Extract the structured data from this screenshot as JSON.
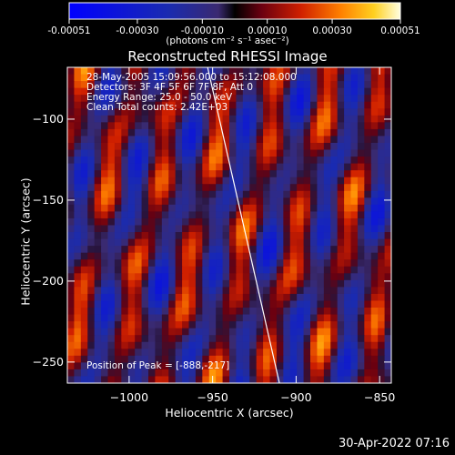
{
  "colorbar": {
    "ticks": [
      {
        "value": -0.00051,
        "label": "-0.00051"
      },
      {
        "value": -0.0003,
        "label": "-0.00030"
      },
      {
        "value": -0.0001,
        "label": "-0.00010"
      },
      {
        "value": 0.0001,
        "label": "0.00010"
      },
      {
        "value": 0.0003,
        "label": "0.00030"
      },
      {
        "value": 0.00051,
        "label": "0.00051"
      }
    ],
    "range": [
      -0.00051,
      0.00051
    ],
    "units_label": "(photons cm⁻² s⁻¹ asec⁻²)"
  },
  "chart_data": {
    "type": "heatmap",
    "title": "Reconstructed RHESSI Image",
    "xlabel": "Heliocentric X (arcsec)",
    "ylabel": "Heliocentric Y (arcsec)",
    "xlim": [
      -1037,
      -843
    ],
    "ylim": [
      -263,
      -68
    ],
    "xticks": [
      {
        "value": -1000,
        "label": "−1000"
      },
      {
        "value": -950,
        "label": "−950"
      },
      {
        "value": -900,
        "label": "−900"
      },
      {
        "value": -850,
        "label": "−850"
      }
    ],
    "yticks": [
      {
        "value": -100,
        "label": "−100"
      },
      {
        "value": -150,
        "label": "−150"
      },
      {
        "value": -200,
        "label": "−200"
      },
      {
        "value": -250,
        "label": "−250"
      }
    ],
    "annotations": {
      "time": "28-May-2005 15:09:56.000 to 15:12:08.000",
      "detectors": "Detectors: 3F 4F 5F 6F 7F 8F, Att 0",
      "energy": "Energy Range: 25.0 - 50.0 keV",
      "method": "Clean     Total counts: 2.42E+03",
      "peak": "Position of Peak = [-888,-217]"
    },
    "peak": {
      "x": -888,
      "y": -217
    },
    "limb_line": [
      {
        "x": -953,
        "y": -68
      },
      {
        "x": -910,
        "y": -263
      }
    ]
  },
  "footer": {
    "timestamp": "30-Apr-2022 07:16"
  }
}
